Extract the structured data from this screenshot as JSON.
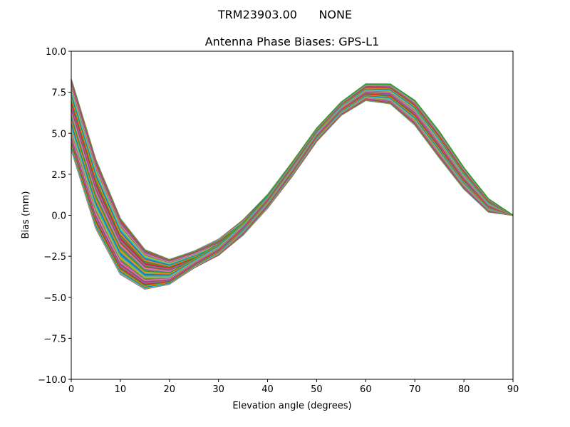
{
  "chart_data": {
    "type": "line",
    "suptitle": "TRM23903.00      NONE",
    "title": "Antenna Phase Biases: GPS-L1",
    "xlabel": "Elevation angle (degrees)",
    "ylabel": "Bias (mm)",
    "xlim": [
      0,
      90
    ],
    "ylim": [
      -10,
      10
    ],
    "xticks": [
      "0",
      "10",
      "20",
      "30",
      "40",
      "50",
      "60",
      "70",
      "80",
      "90"
    ],
    "yticks": [
      "−10.0",
      "−7.5",
      "−5.0",
      "−2.5",
      "0.0",
      "2.5",
      "5.0",
      "7.5",
      "10.0"
    ],
    "x": [
      0,
      5,
      10,
      15,
      20,
      25,
      30,
      35,
      40,
      45,
      50,
      55,
      60,
      65,
      70,
      75,
      80,
      85,
      90
    ],
    "envelope_upper": [
      8.3,
      3.4,
      -0.2,
      -2.1,
      -2.7,
      -2.1,
      -1.3,
      -0.1,
      1.4,
      3.3,
      5.3,
      6.9,
      8.0,
      8.0,
      7.0,
      5.1,
      2.9,
      1.0,
      0.0
    ],
    "envelope_lower": [
      4.0,
      -0.8,
      -3.6,
      -4.5,
      -4.2,
      -3.3,
      -2.6,
      -1.4,
      0.3,
      2.3,
      4.5,
      6.1,
      7.0,
      6.8,
      5.5,
      3.5,
      1.6,
      0.2,
      0.0
    ],
    "series_count": 73,
    "grid": false,
    "colors": [
      "#1f77b4",
      "#ff7f0e",
      "#2ca02c",
      "#d62728",
      "#9467bd",
      "#8c564b",
      "#e377c2",
      "#7f7f7f",
      "#bcbd22",
      "#17becf"
    ]
  }
}
